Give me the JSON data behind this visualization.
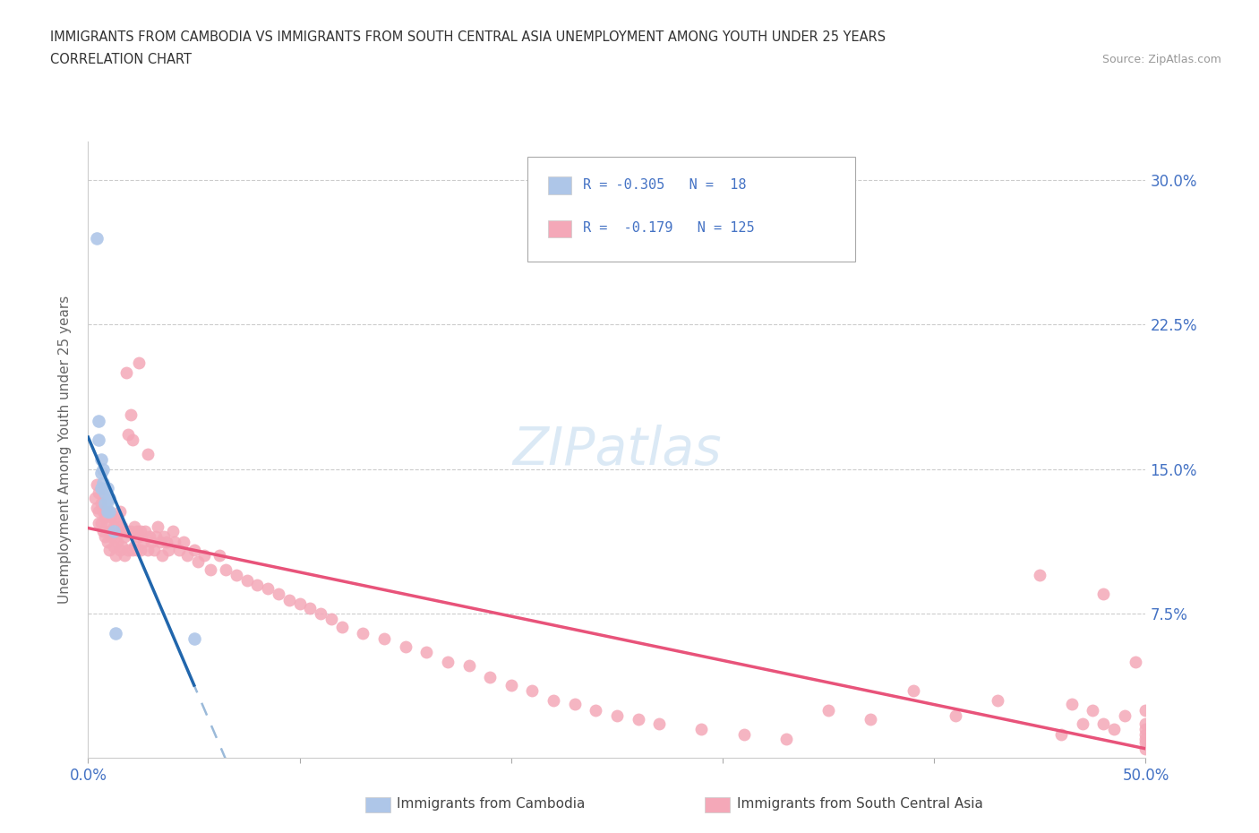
{
  "title_line1": "IMMIGRANTS FROM CAMBODIA VS IMMIGRANTS FROM SOUTH CENTRAL ASIA UNEMPLOYMENT AMONG YOUTH UNDER 25 YEARS",
  "title_line2": "CORRELATION CHART",
  "source_text": "Source: ZipAtlas.com",
  "ylabel": "Unemployment Among Youth under 25 years",
  "xlim": [
    0.0,
    0.5
  ],
  "ylim": [
    0.0,
    0.32
  ],
  "ytick_right_labels": [
    "7.5%",
    "15.0%",
    "22.5%",
    "30.0%"
  ],
  "ytick_right_vals": [
    0.075,
    0.15,
    0.225,
    0.3
  ],
  "color_cambodia": "#aec6e8",
  "color_sca": "#f4a8b8",
  "color_cambodia_line": "#2166ac",
  "color_sca_line": "#e8537a",
  "color_axis_label": "#4472c4",
  "background_color": "#ffffff",
  "cambodia_x": [
    0.004,
    0.005,
    0.005,
    0.006,
    0.006,
    0.006,
    0.007,
    0.007,
    0.008,
    0.008,
    0.009,
    0.009,
    0.009,
    0.01,
    0.01,
    0.012,
    0.013,
    0.05
  ],
  "cambodia_y": [
    0.27,
    0.175,
    0.165,
    0.155,
    0.148,
    0.14,
    0.15,
    0.143,
    0.138,
    0.132,
    0.14,
    0.133,
    0.128,
    0.135,
    0.128,
    0.118,
    0.065,
    0.062
  ],
  "sca_x": [
    0.003,
    0.004,
    0.004,
    0.005,
    0.005,
    0.005,
    0.006,
    0.006,
    0.007,
    0.007,
    0.008,
    0.008,
    0.009,
    0.009,
    0.01,
    0.01,
    0.01,
    0.011,
    0.011,
    0.012,
    0.012,
    0.013,
    0.013,
    0.013,
    0.014,
    0.014,
    0.015,
    0.015,
    0.015,
    0.016,
    0.016,
    0.017,
    0.017,
    0.018,
    0.018,
    0.019,
    0.019,
    0.02,
    0.02,
    0.021,
    0.021,
    0.022,
    0.022,
    0.023,
    0.023,
    0.024,
    0.024,
    0.025,
    0.025,
    0.026,
    0.027,
    0.028,
    0.028,
    0.029,
    0.03,
    0.031,
    0.032,
    0.033,
    0.034,
    0.035,
    0.036,
    0.037,
    0.038,
    0.04,
    0.041,
    0.043,
    0.045,
    0.047,
    0.05,
    0.052,
    0.055,
    0.058,
    0.062,
    0.065,
    0.07,
    0.075,
    0.08,
    0.085,
    0.09,
    0.095,
    0.1,
    0.105,
    0.11,
    0.115,
    0.12,
    0.13,
    0.14,
    0.15,
    0.16,
    0.17,
    0.18,
    0.19,
    0.2,
    0.21,
    0.22,
    0.23,
    0.24,
    0.25,
    0.26,
    0.27,
    0.29,
    0.31,
    0.33,
    0.35,
    0.37,
    0.39,
    0.41,
    0.43,
    0.45,
    0.46,
    0.465,
    0.47,
    0.475,
    0.48,
    0.48,
    0.485,
    0.49,
    0.495,
    0.5,
    0.5,
    0.5,
    0.5,
    0.5,
    0.5,
    0.5
  ],
  "sca_y": [
    0.135,
    0.142,
    0.13,
    0.138,
    0.128,
    0.122,
    0.132,
    0.122,
    0.128,
    0.118,
    0.125,
    0.115,
    0.122,
    0.112,
    0.128,
    0.118,
    0.108,
    0.125,
    0.115,
    0.12,
    0.11,
    0.125,
    0.115,
    0.105,
    0.122,
    0.112,
    0.128,
    0.118,
    0.108,
    0.12,
    0.11,
    0.115,
    0.105,
    0.2,
    0.118,
    0.168,
    0.108,
    0.178,
    0.118,
    0.108,
    0.165,
    0.12,
    0.11,
    0.118,
    0.108,
    0.115,
    0.205,
    0.118,
    0.108,
    0.112,
    0.118,
    0.158,
    0.108,
    0.115,
    0.112,
    0.108,
    0.115,
    0.12,
    0.112,
    0.105,
    0.115,
    0.112,
    0.108,
    0.118,
    0.112,
    0.108,
    0.112,
    0.105,
    0.108,
    0.102,
    0.105,
    0.098,
    0.105,
    0.098,
    0.095,
    0.092,
    0.09,
    0.088,
    0.085,
    0.082,
    0.08,
    0.078,
    0.075,
    0.072,
    0.068,
    0.065,
    0.062,
    0.058,
    0.055,
    0.05,
    0.048,
    0.042,
    0.038,
    0.035,
    0.03,
    0.028,
    0.025,
    0.022,
    0.02,
    0.018,
    0.015,
    0.012,
    0.01,
    0.025,
    0.02,
    0.035,
    0.022,
    0.03,
    0.095,
    0.012,
    0.028,
    0.018,
    0.025,
    0.085,
    0.018,
    0.015,
    0.022,
    0.05,
    0.008,
    0.012,
    0.025,
    0.015,
    0.018,
    0.01,
    0.005
  ]
}
